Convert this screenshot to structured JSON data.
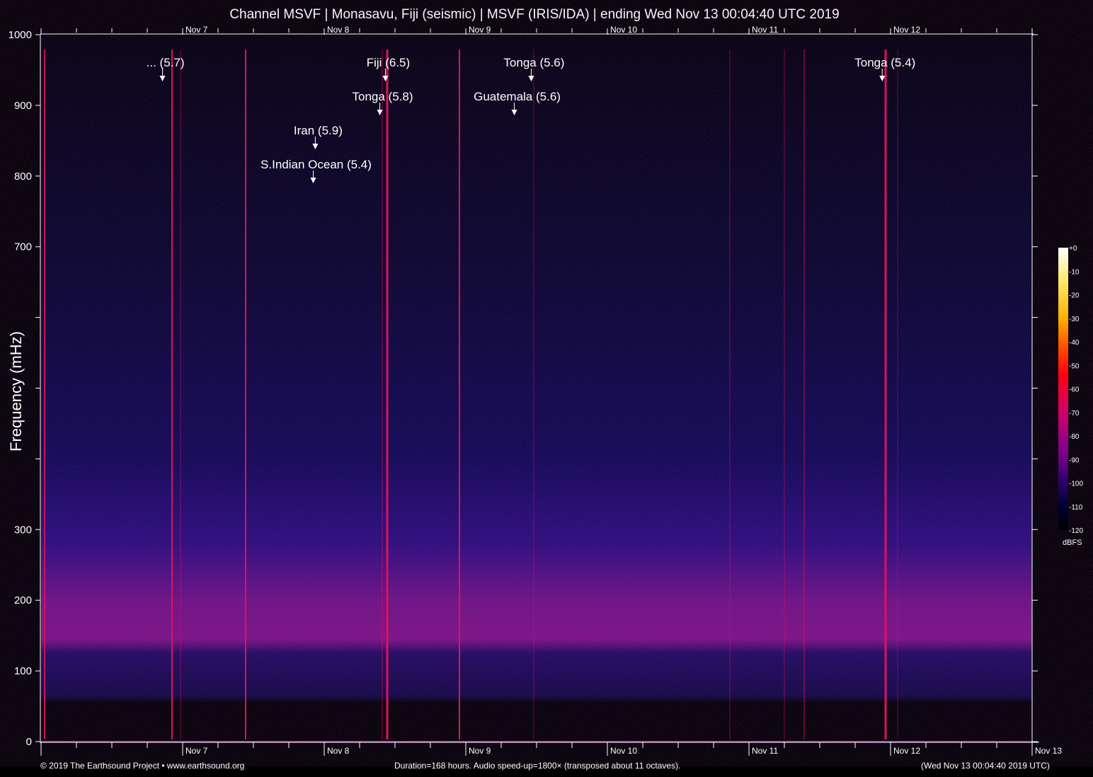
{
  "title": "Channel MSVF | Monasavu, Fiji (seismic) | MSVF (IRIS/IDA) | ending Wed Nov 13 00:04:40 UTC 2019",
  "footer": {
    "copyright": "© 2019 The Earthsound Project • www.earthsound.org",
    "info": "Duration=168 hours. Audio speed-up=1800× (transposed about 11 octaves).",
    "timestamp": "(Wed Nov 13 00:04:40 2019 UTC)"
  },
  "chart_data": {
    "type": "heatmap",
    "title": "Channel MSVF | Monasavu, Fiji (seismic) | MSVF (IRIS/IDA) | ending Wed Nov 13 00:04:40 UTC 2019",
    "ylabel": "Frequency (mHz)",
    "ylim": [
      0,
      1000
    ],
    "y_ticks": [
      0,
      100,
      200,
      300,
      400,
      500,
      600,
      700,
      800,
      900,
      1000
    ],
    "y_tick_labels": [
      "0",
      "100",
      "200",
      "300",
      "",
      "",
      "",
      "700",
      "800",
      "900",
      "1000"
    ],
    "xlim": [
      "2019-11-06T00:04:40",
      "2019-11-13T00:04:40"
    ],
    "x_tick_labels": [
      "Nov 7",
      "Nov 8",
      "Nov 9",
      "Nov 10",
      "Nov 11",
      "Nov 12",
      "Nov 13"
    ],
    "colorbar": {
      "unit": "dBFS",
      "range": [
        -120,
        0
      ],
      "tick_labels": [
        "+0",
        "-10",
        "-20",
        "-30",
        "-40",
        "-50",
        "-60",
        "-70",
        "-80",
        "-90",
        "-100",
        "-110",
        "-120"
      ],
      "colors": [
        "#ffffff",
        "#ffe868",
        "#ffb000",
        "#ff4000",
        "#ff0010",
        "#d0006a",
        "#80008a",
        "#300070",
        "#000030",
        "#000000"
      ]
    },
    "events": [
      {
        "label": "... (5.7)",
        "time": "2019-11-06T20:40",
        "row": 0
      },
      {
        "label": "S.Indian Ocean (5.4)",
        "time": "2019-11-07T22:13",
        "row": 3
      },
      {
        "label": "Iran (5.9)",
        "time": "2019-11-07T22:34",
        "row": 2
      },
      {
        "label": "Tonga (5.8)",
        "time": "2019-11-08T09:30",
        "row": 1
      },
      {
        "label": "Fiji (6.5)",
        "time": "2019-11-08T10:27",
        "row": 0
      },
      {
        "label": "Guatemala (5.6)",
        "time": "2019-11-09T08:18",
        "row": 1
      },
      {
        "label": "Tonga (5.6)",
        "time": "2019-11-09T11:10",
        "row": 0
      },
      {
        "label": "Tonga (5.4)",
        "time": "2019-11-11T22:40",
        "row": 0
      }
    ]
  }
}
